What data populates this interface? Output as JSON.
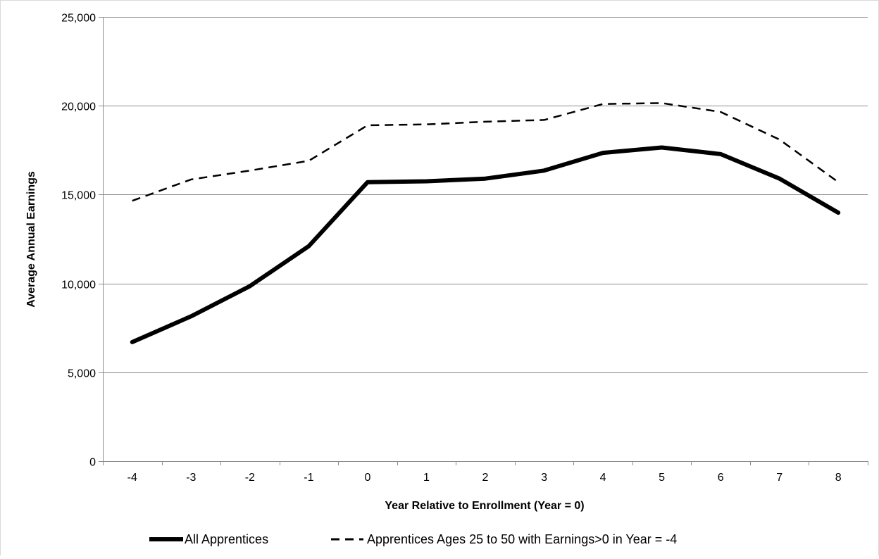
{
  "chart_data": {
    "type": "line",
    "title": "",
    "xlabel": "Year Relative to Enrollment (Year = 0)",
    "ylabel": "Average Annual Earnings",
    "x": [
      -4,
      -3,
      -2,
      -1,
      0,
      1,
      2,
      3,
      4,
      5,
      6,
      7,
      8
    ],
    "x_tick_labels": [
      "-4",
      "-3",
      "-2",
      "-1",
      "0",
      "1",
      "2",
      "3",
      "4",
      "5",
      "6",
      "7",
      "8"
    ],
    "ylim": [
      0,
      25000
    ],
    "y_ticks": [
      0,
      5000,
      10000,
      15000,
      20000,
      25000
    ],
    "y_tick_labels": [
      "0",
      "5,000",
      "10,000",
      "15,000",
      "20,000",
      "25,000"
    ],
    "grid": "horizontal",
    "legend_position": "bottom",
    "series": [
      {
        "name": "All Apprentices",
        "style": "solid",
        "color": "#000000",
        "values": [
          6700,
          8150,
          9850,
          12100,
          15700,
          15750,
          15900,
          16350,
          17350,
          17650,
          17280,
          15900,
          13980
        ]
      },
      {
        "name": "Apprentices Ages 25 to 50 with Earnings>0 in Year = -4",
        "style": "dashed",
        "color": "#000000",
        "values": [
          14650,
          15850,
          16350,
          16900,
          18900,
          18950,
          19100,
          19200,
          20100,
          20150,
          19650,
          18100,
          15700
        ]
      }
    ]
  }
}
